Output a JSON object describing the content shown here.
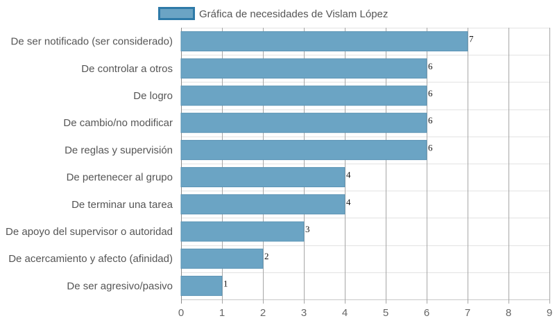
{
  "chart_data": {
    "type": "bar",
    "orientation": "horizontal",
    "categories": [
      "De ser notificado (ser considerado)",
      "De controlar a otros",
      "De logro",
      "De cambio/no modificar",
      "De reglas y supervisión",
      "De pertenecer al grupo",
      "De terminar una tarea",
      "De apoyo del supervisor o autoridad",
      "De acercamiento y afecto (afinidad)",
      "De ser agresivo/pasivo"
    ],
    "series": [
      {
        "name": "Gráfica de necesidades de Vislam López",
        "values": [
          7,
          6,
          6,
          6,
          6,
          4,
          4,
          3,
          2,
          1
        ]
      }
    ],
    "xlim": [
      0,
      9
    ],
    "xticks": [
      0,
      1,
      2,
      3,
      4,
      5,
      6,
      7,
      8,
      9
    ],
    "grid": true,
    "legend": "top",
    "colors": {
      "bar": "#6ba4c4",
      "bar_border": "#5a93b4",
      "legend_border": "#2e7aa8"
    }
  }
}
